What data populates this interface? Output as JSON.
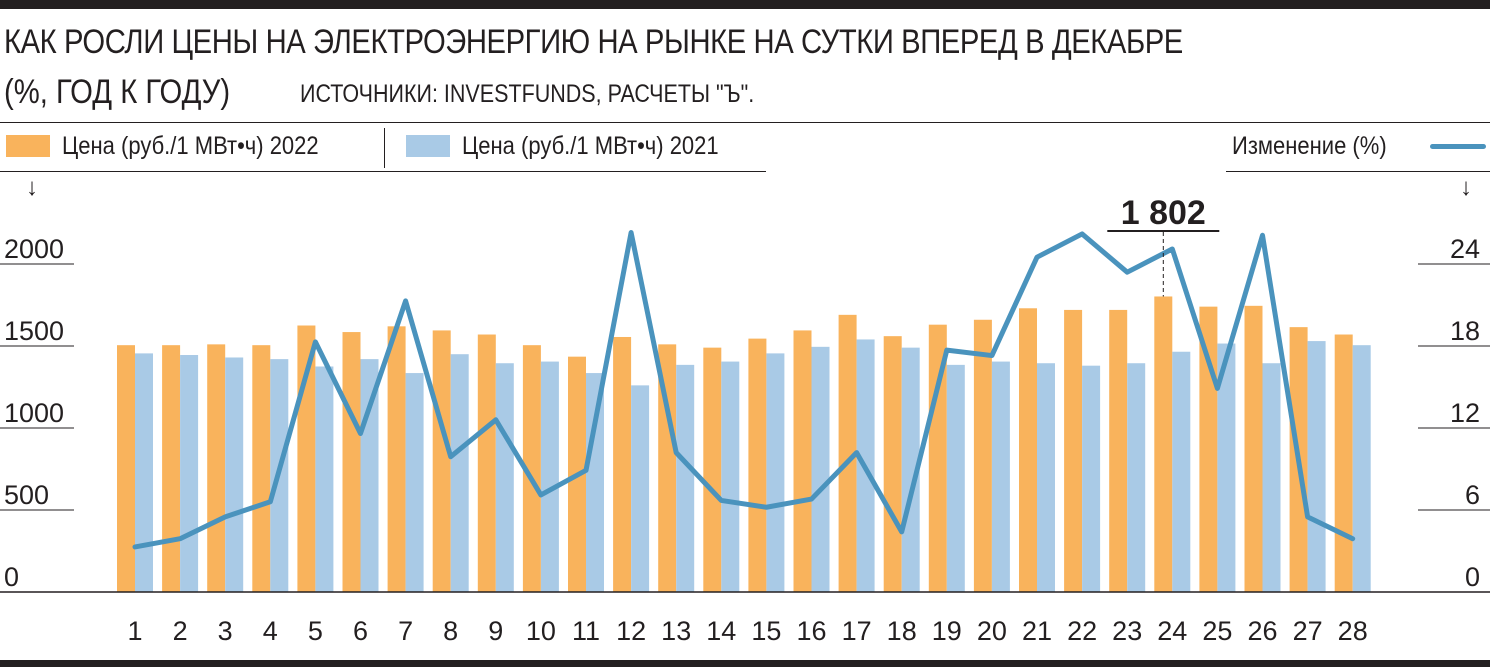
{
  "header": {
    "title": "КАК РОСЛИ ЦЕНЫ НА ЭЛЕКТРОЭНЕРГИЮ НА РЫНКЕ НА СУТКИ ВПЕРЕД В ДЕКАБРЕ",
    "subtitle": "(%, ГОД К ГОДУ)",
    "source": "ИСТОЧНИКИ:  INVESTFUNDS, РАСЧЕТЫ \"Ъ\"."
  },
  "legend": {
    "price_2022": "Цена (руб./1 МВт•ч) 2022",
    "price_2021": "Цена (руб./1 МВт•ч) 2021",
    "change": "Изменение (%)",
    "left_arrow": "↓",
    "right_arrow": "↓"
  },
  "colors": {
    "bar_2022": "#f9b35c",
    "bar_2021": "#a9cae6",
    "line": "#4a93bd",
    "text": "#231f20"
  },
  "chart_data": {
    "type": "bar",
    "title": "КАК РОСЛИ ЦЕНЫ НА ЭЛЕКТРОЭНЕРГИЮ НА РЫНКЕ НА СУТКИ ВПЕРЕД В ДЕКАБРЕ",
    "categories": [
      "1",
      "2",
      "3",
      "4",
      "5",
      "6",
      "7",
      "8",
      "9",
      "10",
      "11",
      "12",
      "13",
      "14",
      "15",
      "16",
      "17",
      "18",
      "19",
      "20",
      "21",
      "22",
      "23",
      "24",
      "25",
      "26",
      "27",
      "28"
    ],
    "series": [
      {
        "name": "Цена (руб./1 МВт•ч) 2022",
        "type": "bar",
        "axis": "left",
        "values": [
          1505,
          1505,
          1510,
          1505,
          1625,
          1585,
          1620,
          1595,
          1570,
          1505,
          1435,
          1555,
          1510,
          1490,
          1545,
          1595,
          1690,
          1560,
          1630,
          1660,
          1730,
          1720,
          1720,
          1802,
          1740,
          1745,
          1615,
          1570
        ]
      },
      {
        "name": "Цена (руб./1 МВт•ч) 2021",
        "type": "bar",
        "axis": "left",
        "values": [
          1455,
          1445,
          1430,
          1420,
          1375,
          1420,
          1335,
          1450,
          1395,
          1405,
          1335,
          1260,
          1385,
          1405,
          1455,
          1495,
          1540,
          1490,
          1385,
          1405,
          1395,
          1380,
          1395,
          1465,
          1515,
          1395,
          1530,
          1505
        ]
      },
      {
        "name": "Изменение (%)",
        "type": "line",
        "axis": "right",
        "values": [
          3.3,
          3.9,
          5.5,
          6.6,
          18.3,
          11.6,
          21.3,
          9.9,
          12.6,
          7.1,
          8.9,
          26.3,
          10.2,
          6.7,
          6.2,
          6.8,
          10.2,
          4.4,
          17.7,
          17.3,
          24.5,
          26.2,
          23.4,
          25.1,
          14.9,
          26.1,
          5.5,
          3.9
        ]
      }
    ],
    "ylim_left": [
      0,
      2000
    ],
    "yticks_left": [
      "0",
      "500",
      "1000",
      "1500",
      "2000"
    ],
    "ylim_right": [
      0,
      24
    ],
    "yticks_right": [
      "0",
      "6",
      "12",
      "18",
      "24"
    ],
    "annotation": {
      "category": "24",
      "text": "1 802"
    },
    "grid": false,
    "legend_position": "top"
  }
}
